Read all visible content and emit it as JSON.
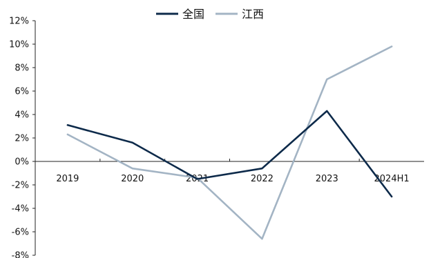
{
  "chart_data": {
    "type": "line",
    "categories": [
      "2019",
      "2020",
      "2021",
      "2022",
      "2023",
      "2024H1"
    ],
    "series": [
      {
        "name": "全国",
        "color": "#0d2a4a",
        "values": [
          3.1,
          1.6,
          -1.5,
          -0.6,
          4.3,
          -3.0
        ]
      },
      {
        "name": "江西",
        "color": "#a3b4c4",
        "values": [
          2.3,
          -0.6,
          -1.4,
          -6.6,
          7.0,
          9.8
        ]
      }
    ],
    "yTicks": [
      "12%",
      "10%",
      "8%",
      "6%",
      "4%",
      "2%",
      "0%",
      "-2%",
      "-4%",
      "-6%",
      "-8%"
    ],
    "ylim": [
      -8,
      12
    ],
    "legend_position": "top-center",
    "grid": false,
    "axis_color": "#222222"
  }
}
